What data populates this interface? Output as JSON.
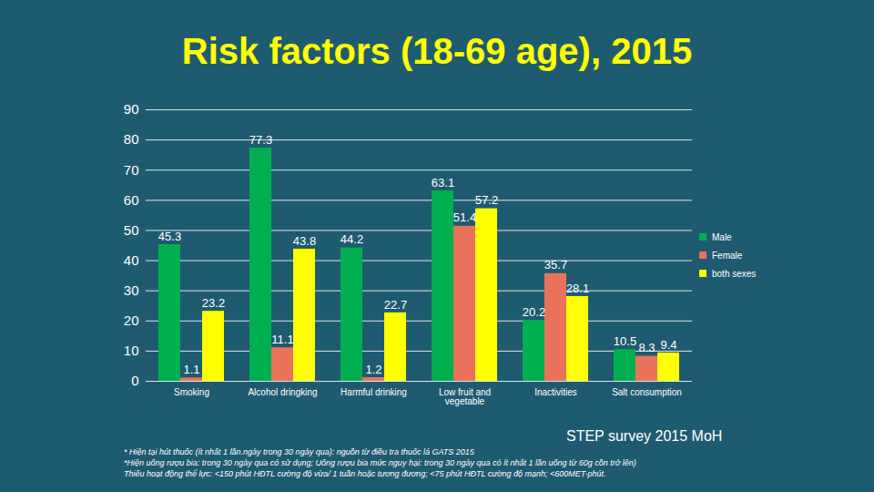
{
  "chart_data": {
    "type": "bar",
    "title": "Risk factors (18-69 age), 2015",
    "categories": [
      "Smoking",
      "Alcohol dringking",
      "Harmful drinking",
      "Low fruit and vegetable",
      "Inactivities",
      "Salt consumption"
    ],
    "series": [
      {
        "name": "Male",
        "color": "#00b050",
        "values": [
          45.3,
          77.3,
          44.2,
          63.1,
          20.2,
          10.5
        ]
      },
      {
        "name": "Female",
        "color": "#e8735a",
        "values": [
          1.1,
          11.1,
          1.2,
          51.4,
          35.7,
          8.3
        ]
      },
      {
        "name": "both sexes",
        "color": "#ffff00",
        "values": [
          23.2,
          43.8,
          22.7,
          57.2,
          28.1,
          9.4
        ]
      }
    ],
    "ylim": [
      0,
      90
    ],
    "yticks": [
      0,
      10,
      20,
      30,
      40,
      50,
      60,
      70,
      80,
      90
    ],
    "grid": true,
    "legend": "right",
    "data_labels": true,
    "source": "STEP survey 2015 MoH",
    "notes": [
      "* Hiện tại hút thuốc (ít nhất 1 lần.ngày trong 30 ngày qua): nguồn từ điều tra thuốc lá GATS 2015",
      "*Hiện uống rượu bia: trong 30 ngày qua có sử dụng; Uống rượu bia mức nguy hại: trong 30 ngày qua có ít nhất 1 lần uống từ 60g cồn trở lên)",
      "Thiếu hoạt động thể lực: <150 phút HĐTL cường độ vừa/ 1 tuần hoặc tương đương; <75 phút HĐTL cường độ mạnh; <600MET-phút."
    ]
  }
}
